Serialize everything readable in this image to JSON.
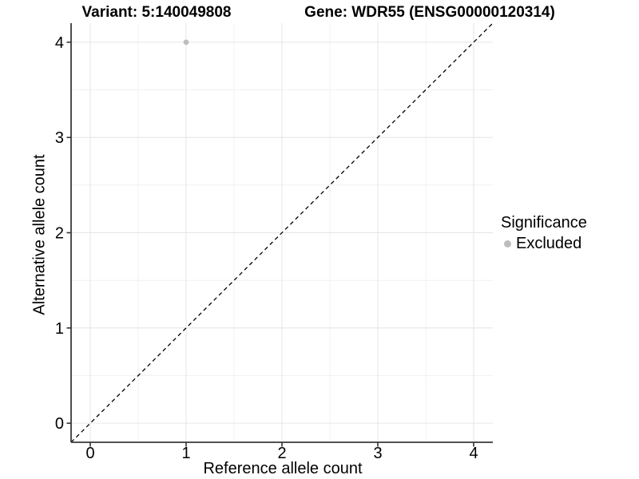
{
  "header": {
    "variant_title": "Variant: 5:140049808",
    "gene_title": "Gene: WDR55 (ENSG00000120314)"
  },
  "chart_data": {
    "type": "scatter",
    "xlabel": "Reference allele count",
    "ylabel": "Alternative allele count",
    "xlim": [
      -0.2,
      4.2
    ],
    "ylim": [
      -0.2,
      4.2
    ],
    "xticks": [
      0,
      1,
      2,
      3,
      4
    ],
    "yticks": [
      0,
      1,
      2,
      3,
      4
    ],
    "grid": true,
    "grid_major_color": "#e6e6e6",
    "grid_minor_color": "#efefef",
    "axis_color": "#3a3a3a",
    "identity_line": {
      "style": "dashed",
      "color": "#000000",
      "from": -0.2,
      "to": 4.2
    },
    "series": [
      {
        "name": "Excluded",
        "color": "#bdbdbd",
        "points": [
          {
            "x": 1,
            "y": 4
          }
        ]
      }
    ],
    "legend": {
      "title": "Significance",
      "position": "right",
      "entries": [
        {
          "label": "Excluded",
          "color": "#bdbdbd"
        }
      ]
    }
  }
}
